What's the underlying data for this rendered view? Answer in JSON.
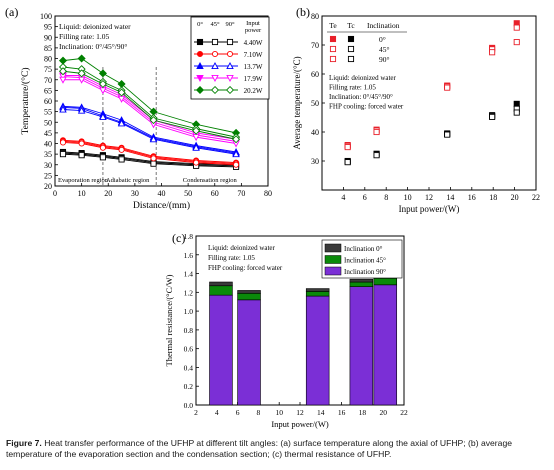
{
  "caption": {
    "label": "Figure 7.",
    "text": "Heat transfer performance of the UFHP at different tilt angles: (a) surface temperature along the axial of UFHP; (b) average temperature of the evaporation section and the condensation section; (c) thermal resistance of UFHP."
  },
  "chart_data": [
    {
      "id": "a",
      "panel_label": "(a)",
      "type": "line",
      "xlabel": "Distance/(mm)",
      "ylabel": "Temperature/(°C)",
      "xlim": [
        0,
        80
      ],
      "ylim": [
        20,
        100
      ],
      "xticks": [
        0,
        10,
        20,
        30,
        40,
        50,
        60,
        70,
        80
      ],
      "yticks": [
        20,
        25,
        30,
        35,
        40,
        45,
        50,
        55,
        60,
        65,
        70,
        75,
        80,
        85,
        90,
        95,
        100
      ],
      "x": [
        3,
        10,
        18,
        25,
        37,
        53,
        68
      ],
      "annotation_lines": [
        "Liquid: deionized water",
        "Filling rate: 1.05",
        "Inclination: 0°/45°/90°"
      ],
      "region_labels": [
        "Evaporation region",
        "Adiabatic region",
        "Condensation region"
      ],
      "region_boundaries": [
        18,
        38
      ],
      "legend_header": [
        "0°",
        "45°",
        "90°",
        "Input power"
      ],
      "series": [
        {
          "power": "4.40W",
          "color": "#000000",
          "values": {
            "0": [
              36,
              35.5,
              34.5,
              33.5,
              31.5,
              30.5,
              30
            ],
            "45": [
              35.5,
              35,
              34,
              33,
              31,
              30,
              29.5
            ],
            "90": [
              35,
              34.5,
              33.5,
              32.5,
              30.5,
              29.5,
              29
            ]
          }
        },
        {
          "power": "7.10W",
          "color": "#ff0000",
          "values": {
            "0": [
              41.5,
              41,
              39,
              38,
              34,
              32,
              31
            ],
            "45": [
              41,
              40.5,
              38.5,
              37.5,
              33.5,
              31.5,
              30.5
            ],
            "90": [
              40.5,
              40,
              38,
              37,
              33,
              31,
              30
            ]
          }
        },
        {
          "power": "13.7W",
          "color": "#0000ff",
          "values": {
            "0": [
              57.5,
              57,
              54,
              51,
              43,
              39,
              36
            ],
            "45": [
              57,
              56.5,
              53,
              50,
              42.5,
              38.5,
              35.5
            ],
            "90": [
              56,
              55.5,
              52.5,
              49.5,
              42,
              38,
              35
            ]
          }
        },
        {
          "power": "17.9W",
          "color": "#ff00ff",
          "values": {
            "0": [
              72,
              72,
              67,
              63,
              51,
              45,
              42
            ],
            "45": [
              71.5,
              71,
              66,
              62,
              50,
              44,
              41
            ],
            "90": [
              70,
              70,
              65,
              61,
              49,
              43,
              40
            ]
          }
        },
        {
          "power": "20.2W",
          "color": "#008000",
          "values": {
            "0": [
              79,
              80,
              73,
              68,
              55,
              49,
              45
            ],
            "45": [
              76,
              75,
              69,
              65,
              52,
              47,
              43
            ],
            "90": [
              74,
              73,
              68,
              64,
              51,
              46,
              42
            ]
          }
        }
      ]
    },
    {
      "id": "b",
      "panel_label": "(b)",
      "type": "scatter",
      "xlabel": "Input power/(W)",
      "ylabel": "Average temperature/(°C)",
      "xlim": [
        2,
        22
      ],
      "ylim": [
        20,
        80
      ],
      "xticks": [
        4,
        6,
        8,
        10,
        12,
        14,
        16,
        18,
        20,
        22
      ],
      "yticks": [
        30,
        40,
        50,
        60,
        70,
        80
      ],
      "x": [
        4.4,
        7.1,
        13.7,
        17.9,
        20.2
      ],
      "legend_header": [
        "Te",
        "Tc",
        "Inclination"
      ],
      "legend_inclinations": [
        "0°",
        "45°",
        "90°"
      ],
      "annotation_lines": [
        "Liquid: deionized water",
        "Filling rate: 1.05",
        "Inclination: 0°/45°/90°",
        "FHP cooling: forced water"
      ],
      "Te": {
        "0": [
          35.5,
          40.8,
          56,
          69,
          77.5
        ],
        "45": [
          35.2,
          40.5,
          55.7,
          68.5,
          76
        ],
        "90": [
          34.8,
          40,
          55.3,
          67.5,
          71
        ]
      },
      "Tc": {
        "0": [
          30,
          32.5,
          39.5,
          45.8,
          49.7
        ],
        "45": [
          29.8,
          32.3,
          39.3,
          45.5,
          48
        ],
        "90": [
          29.6,
          32,
          39.1,
          45.2,
          46.7
        ]
      }
    },
    {
      "id": "c",
      "panel_label": "(c)",
      "type": "bar",
      "xlabel": "Input power/(W)",
      "ylabel": "Thermal resistance/(°C/W)",
      "xlim": [
        2,
        22
      ],
      "ylim": [
        0,
        1.8
      ],
      "xticks": [
        2,
        4,
        6,
        8,
        10,
        12,
        14,
        16,
        18,
        20,
        22
      ],
      "yticks": [
        0.0,
        0.2,
        0.4,
        0.6,
        0.8,
        1.0,
        1.2,
        1.4,
        1.6,
        1.8
      ],
      "categories": [
        4.4,
        7.1,
        13.7,
        17.9,
        20.2
      ],
      "annotation_lines": [
        "Liquid: deionized water",
        "Filling rate: 1.05",
        "FHP cooling: forced water"
      ],
      "series": [
        {
          "name": "Inclination 90°",
          "color": "#7b2fd6",
          "values": [
            1.17,
            1.12,
            1.16,
            1.26,
            1.28
          ]
        },
        {
          "name": "Inclination 45°",
          "color": "#0a8a0a",
          "values": [
            0.1,
            0.07,
            0.05,
            0.05,
            0.07
          ]
        },
        {
          "name": "Inclination 0°",
          "color": "#3a3a3a",
          "values": [
            0.04,
            0.03,
            0.03,
            0.03,
            0.03
          ]
        }
      ]
    }
  ]
}
